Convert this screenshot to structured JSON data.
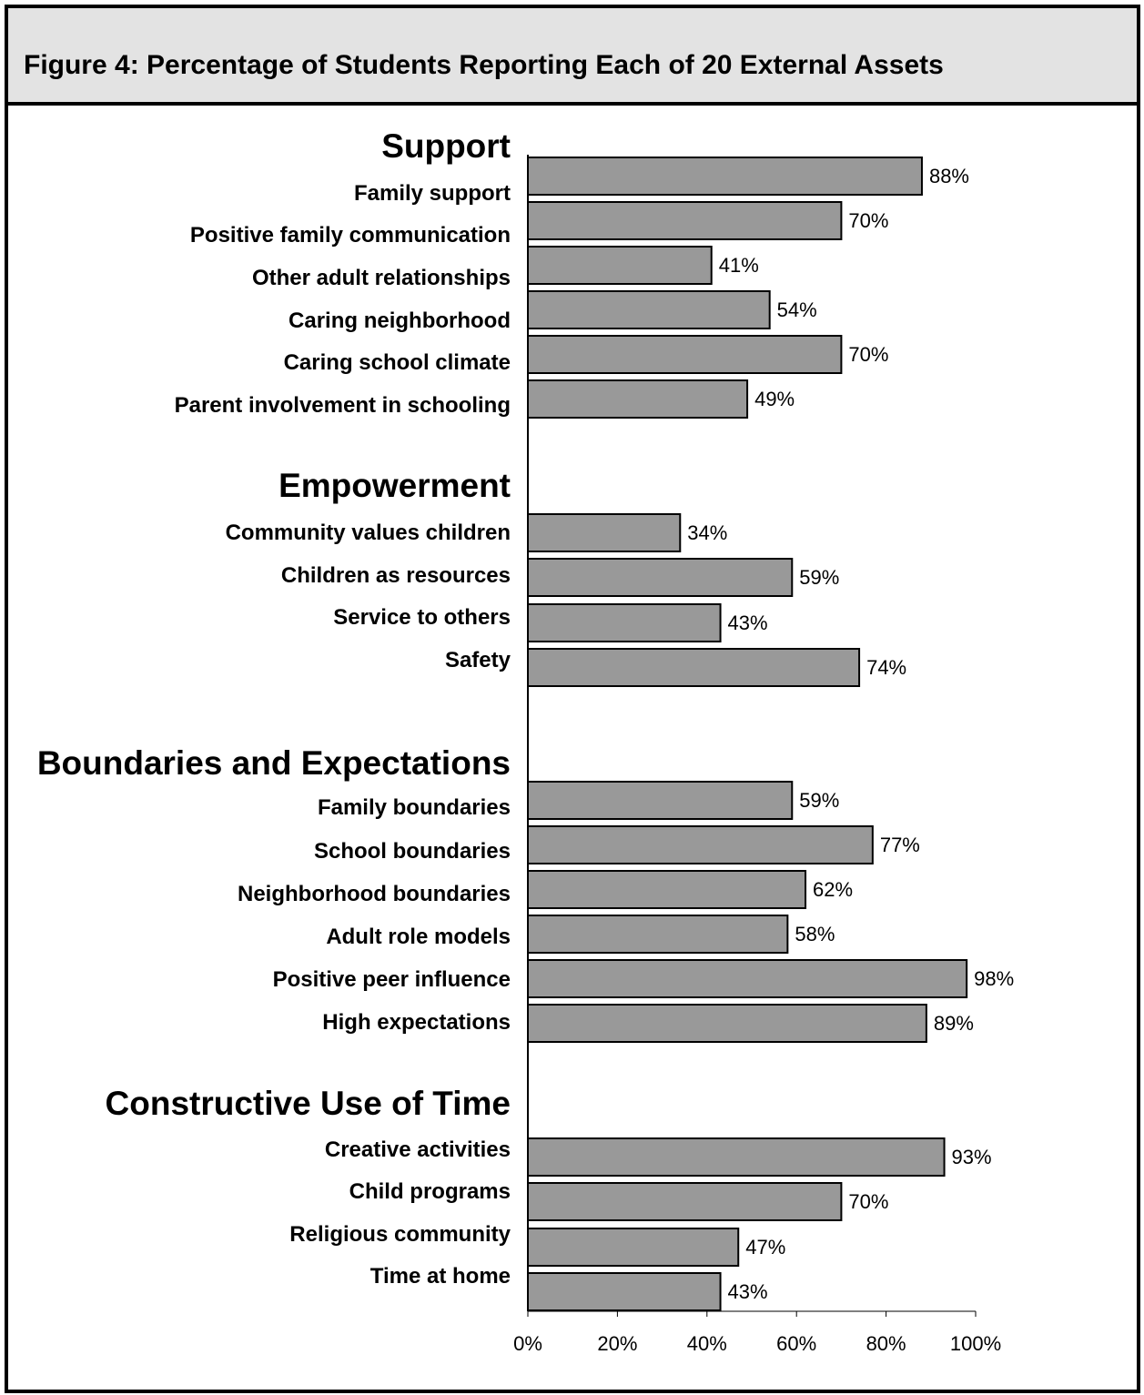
{
  "figure": {
    "title": "Figure 4: Percentage of Students Reporting Each of 20 External Assets"
  },
  "colors": {
    "bar_fill": "#999999",
    "bar_stroke": "#000000",
    "header_bg": "#e3e3e3"
  },
  "chart_data": {
    "type": "bar",
    "orientation": "horizontal",
    "title": "Figure 4: Percentage of Students Reporting Each of 20 External Assets",
    "xlim": [
      0,
      100
    ],
    "x_ticks": [
      "0%",
      "20%",
      "40%",
      "60%",
      "80%",
      "100%"
    ],
    "grid": false,
    "groups": [
      {
        "name": "Support",
        "categories": [
          "Family support",
          "Positive family communication",
          "Other adult relationships",
          "Caring neighborhood",
          "Caring school climate",
          "Parent involvement in schooling"
        ],
        "values": [
          88,
          70,
          41,
          54,
          70,
          49
        ],
        "value_labels": [
          "88%",
          "70%",
          "41%",
          "54%",
          "70%",
          "49%"
        ]
      },
      {
        "name": "Empowerment",
        "categories": [
          "Community values children",
          "Children as resources",
          "Service to others",
          "Safety"
        ],
        "values": [
          34,
          59,
          43,
          74
        ],
        "value_labels": [
          "34%",
          "59%",
          "43%",
          "74%"
        ]
      },
      {
        "name": "Boundaries and Expectations",
        "categories": [
          "Family boundaries",
          "School boundaries",
          "Neighborhood boundaries",
          "Adult role models",
          "Positive peer influence",
          "High expectations"
        ],
        "values": [
          59,
          77,
          62,
          58,
          98,
          89
        ],
        "value_labels": [
          "59%",
          "77%",
          "62%",
          "58%",
          "98%",
          "89%"
        ]
      },
      {
        "name": "Constructive Use of Time",
        "categories": [
          "Creative activities",
          "Child programs",
          "Religious community",
          "Time at home"
        ],
        "values": [
          93,
          70,
          47,
          43
        ],
        "value_labels": [
          "93%",
          "70%",
          "47%",
          "43%"
        ]
      }
    ]
  }
}
